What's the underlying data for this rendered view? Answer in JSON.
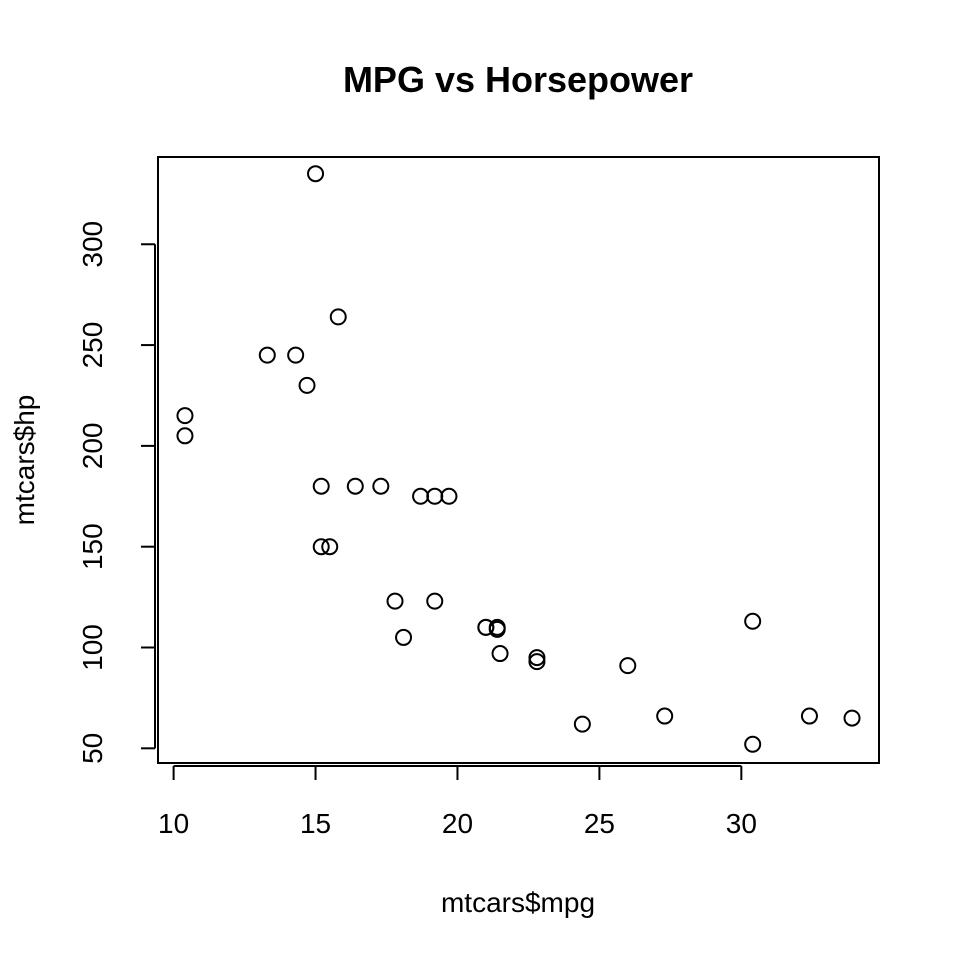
{
  "chart_data": {
    "type": "scatter",
    "title": "MPG vs Horsepower",
    "xlabel": "mtcars$mpg",
    "ylabel": "mtcars$hp",
    "xlim": [
      9.45,
      34.85
    ],
    "ylim": [
      42.72,
      343.28
    ],
    "xticks": [
      10,
      15,
      20,
      25,
      30
    ],
    "yticks": [
      50,
      100,
      150,
      200,
      250,
      300
    ],
    "grid": false,
    "legend": "none",
    "points": [
      {
        "x": 21.0,
        "y": 110
      },
      {
        "x": 21.0,
        "y": 110
      },
      {
        "x": 22.8,
        "y": 93
      },
      {
        "x": 21.4,
        "y": 110
      },
      {
        "x": 18.7,
        "y": 175
      },
      {
        "x": 18.1,
        "y": 105
      },
      {
        "x": 14.3,
        "y": 245
      },
      {
        "x": 24.4,
        "y": 62
      },
      {
        "x": 22.8,
        "y": 95
      },
      {
        "x": 19.2,
        "y": 123
      },
      {
        "x": 17.8,
        "y": 123
      },
      {
        "x": 16.4,
        "y": 180
      },
      {
        "x": 17.3,
        "y": 180
      },
      {
        "x": 15.2,
        "y": 180
      },
      {
        "x": 10.4,
        "y": 205
      },
      {
        "x": 10.4,
        "y": 215
      },
      {
        "x": 14.7,
        "y": 230
      },
      {
        "x": 32.4,
        "y": 66
      },
      {
        "x": 30.4,
        "y": 52
      },
      {
        "x": 33.9,
        "y": 65
      },
      {
        "x": 21.5,
        "y": 97
      },
      {
        "x": 15.5,
        "y": 150
      },
      {
        "x": 15.2,
        "y": 150
      },
      {
        "x": 13.3,
        "y": 245
      },
      {
        "x": 19.2,
        "y": 175
      },
      {
        "x": 27.3,
        "y": 66
      },
      {
        "x": 26.0,
        "y": 91
      },
      {
        "x": 30.4,
        "y": 113
      },
      {
        "x": 15.8,
        "y": 264
      },
      {
        "x": 19.7,
        "y": 175
      },
      {
        "x": 15.0,
        "y": 335
      },
      {
        "x": 21.4,
        "y": 109
      }
    ]
  }
}
